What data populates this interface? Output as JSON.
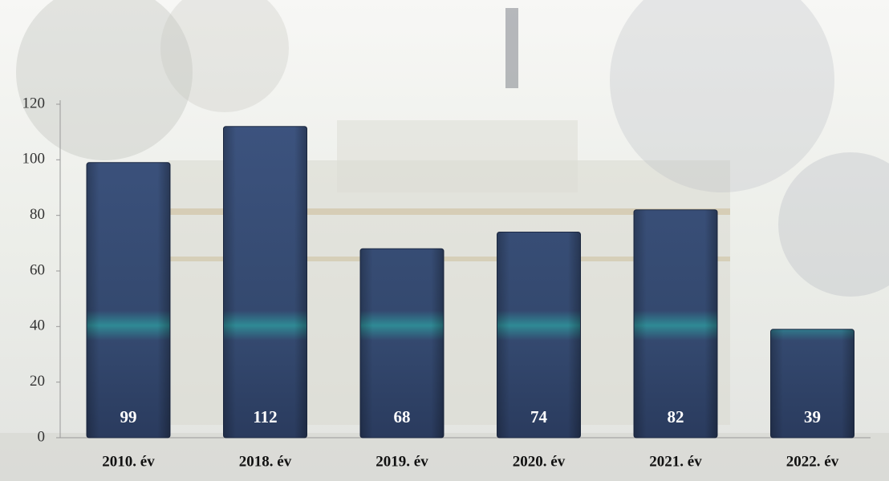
{
  "chart_data": {
    "type": "bar",
    "categories": [
      "2010. év",
      "2018. év",
      "2019. év",
      "2020. év",
      "2021. év",
      "2022. év"
    ],
    "values": [
      99,
      112,
      68,
      74,
      82,
      39
    ],
    "color": "#3a4f78",
    "ylim": [
      0,
      120
    ],
    "yticks": [
      0,
      20,
      40,
      60,
      80,
      100,
      120
    ],
    "grid": false
  }
}
